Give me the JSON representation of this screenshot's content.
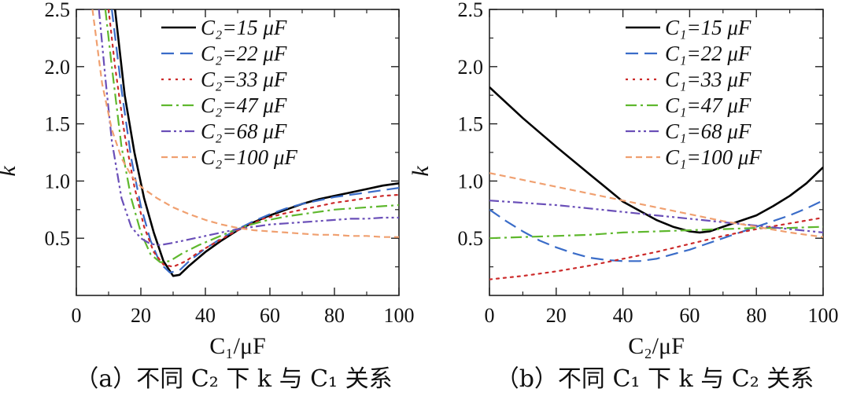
{
  "chart_data": [
    {
      "type": "line",
      "panel": "a",
      "caption": "（a）不同 C₂ 下 k 与 C₁ 关系",
      "xlabel": "C₁/μF",
      "ylabel": "k",
      "xlim": [
        0,
        100
      ],
      "ylim": [
        0,
        2.5
      ],
      "xticks": [
        "0",
        "20",
        "40",
        "60",
        "80",
        "100"
      ],
      "yticks": [
        "0.5",
        "1.0",
        "1.5",
        "2.0",
        "2.5"
      ],
      "legend_position": "top-right",
      "series": [
        {
          "name": "C₂=15 μF",
          "color": "#000000",
          "dash": "solid",
          "x": [
            12,
            15,
            18,
            21,
            24,
            27,
            30,
            32,
            35,
            40,
            45,
            50,
            55,
            60,
            65,
            70,
            75,
            80,
            85,
            90,
            95,
            100
          ],
          "y": [
            2.5,
            1.75,
            1.25,
            0.85,
            0.55,
            0.3,
            0.17,
            0.18,
            0.26,
            0.38,
            0.48,
            0.57,
            0.64,
            0.7,
            0.75,
            0.8,
            0.84,
            0.87,
            0.9,
            0.93,
            0.96,
            0.98
          ]
        },
        {
          "name": "C₂=22 μF",
          "color": "#3a6cc8",
          "dash": "long-dash",
          "x": [
            11,
            14,
            17,
            20,
            23,
            26,
            29,
            32,
            35,
            40,
            45,
            50,
            55,
            60,
            65,
            70,
            75,
            80,
            85,
            90,
            95,
            100
          ],
          "y": [
            2.5,
            1.8,
            1.2,
            0.78,
            0.48,
            0.28,
            0.2,
            0.22,
            0.3,
            0.41,
            0.5,
            0.58,
            0.65,
            0.71,
            0.76,
            0.8,
            0.83,
            0.86,
            0.88,
            0.9,
            0.92,
            0.94
          ]
        },
        {
          "name": "C₂=33 μF",
          "color": "#cc2a2a",
          "dash": "dotted",
          "x": [
            10,
            12,
            15,
            18,
            21,
            24,
            27,
            30,
            34,
            38,
            43,
            48,
            53,
            58,
            65,
            70,
            75,
            80,
            85,
            90,
            95,
            100
          ],
          "y": [
            2.5,
            2.0,
            1.4,
            0.95,
            0.6,
            0.38,
            0.27,
            0.25,
            0.3,
            0.38,
            0.46,
            0.54,
            0.61,
            0.67,
            0.72,
            0.75,
            0.78,
            0.81,
            0.83,
            0.85,
            0.87,
            0.88
          ]
        },
        {
          "name": "C₂=47 μF",
          "color": "#5fb82e",
          "dash": "dash-dot",
          "x": [
            9,
            11,
            14,
            17,
            20,
            23,
            26,
            29,
            33,
            38,
            43,
            48,
            53,
            58,
            65,
            70,
            75,
            80,
            85,
            90,
            95,
            100
          ],
          "y": [
            2.5,
            2.0,
            1.3,
            0.85,
            0.55,
            0.36,
            0.29,
            0.3,
            0.37,
            0.44,
            0.5,
            0.56,
            0.61,
            0.65,
            0.69,
            0.71,
            0.73,
            0.75,
            0.76,
            0.77,
            0.78,
            0.79
          ]
        },
        {
          "name": "C₂=68 μF",
          "color": "#6a4fb8",
          "dash": "dash-dot-dot",
          "x": [
            7,
            9,
            11,
            14,
            17,
            20,
            23,
            26,
            30,
            35,
            40,
            45,
            50,
            55,
            60,
            65,
            70,
            75,
            80,
            85,
            90,
            95,
            100
          ],
          "y": [
            2.5,
            1.9,
            1.35,
            0.85,
            0.6,
            0.5,
            0.45,
            0.44,
            0.46,
            0.49,
            0.52,
            0.55,
            0.58,
            0.6,
            0.62,
            0.63,
            0.64,
            0.65,
            0.66,
            0.67,
            0.67,
            0.68,
            0.68
          ]
        },
        {
          "name": "C₂=100 μF",
          "color": "#f0a070",
          "dash": "short-dash",
          "x": [
            5,
            8,
            11,
            14,
            17,
            20,
            25,
            30,
            35,
            40,
            45,
            50,
            55,
            60,
            65,
            70,
            75,
            80,
            85,
            90,
            95,
            100
          ],
          "y": [
            2.5,
            1.85,
            1.45,
            1.2,
            1.05,
            0.95,
            0.85,
            0.77,
            0.71,
            0.66,
            0.62,
            0.59,
            0.57,
            0.56,
            0.55,
            0.54,
            0.53,
            0.53,
            0.52,
            0.52,
            0.51,
            0.51
          ]
        }
      ]
    },
    {
      "type": "line",
      "panel": "b",
      "caption": "（b）不同 C₁ 下 k 与 C₂ 关系",
      "xlabel": "C₂/μF",
      "ylabel": "k",
      "xlim": [
        0,
        100
      ],
      "ylim": [
        0,
        2.5
      ],
      "xticks": [
        "0",
        "20",
        "40",
        "60",
        "80",
        "100"
      ],
      "yticks": [
        "0.5",
        "1.0",
        "1.5",
        "2.0",
        "2.5"
      ],
      "legend_position": "top-right",
      "series": [
        {
          "name": "C₁=15 μF",
          "color": "#000000",
          "dash": "solid",
          "x": [
            0,
            10,
            20,
            30,
            40,
            50,
            55,
            60,
            63,
            66,
            70,
            75,
            80,
            85,
            90,
            95,
            100
          ],
          "y": [
            1.82,
            1.55,
            1.3,
            1.06,
            0.82,
            0.66,
            0.6,
            0.56,
            0.55,
            0.56,
            0.6,
            0.65,
            0.7,
            0.78,
            0.87,
            0.98,
            1.12
          ]
        },
        {
          "name": "C₁=22 μF",
          "color": "#3a6cc8",
          "dash": "long-dash",
          "x": [
            0,
            5,
            10,
            15,
            20,
            25,
            30,
            35,
            40,
            45,
            50,
            55,
            60,
            65,
            70,
            75,
            80,
            85,
            90,
            95,
            100
          ],
          "y": [
            0.75,
            0.65,
            0.56,
            0.48,
            0.42,
            0.37,
            0.33,
            0.31,
            0.3,
            0.3,
            0.32,
            0.36,
            0.4,
            0.45,
            0.5,
            0.55,
            0.6,
            0.65,
            0.7,
            0.76,
            0.83
          ]
        },
        {
          "name": "C₁=33 μF",
          "color": "#cc2a2a",
          "dash": "dotted",
          "x": [
            0,
            10,
            20,
            30,
            40,
            50,
            60,
            70,
            80,
            90,
            100
          ],
          "y": [
            0.14,
            0.17,
            0.21,
            0.26,
            0.32,
            0.38,
            0.45,
            0.52,
            0.58,
            0.63,
            0.68
          ]
        },
        {
          "name": "C₁=47 μF",
          "color": "#5fb82e",
          "dash": "dash-dot",
          "x": [
            0,
            10,
            20,
            30,
            40,
            50,
            60,
            70,
            80,
            90,
            100
          ],
          "y": [
            0.5,
            0.51,
            0.52,
            0.53,
            0.55,
            0.56,
            0.57,
            0.58,
            0.59,
            0.59,
            0.6
          ]
        },
        {
          "name": "C₁=68 μF",
          "color": "#6a4fb8",
          "dash": "dash-dot-dot",
          "x": [
            0,
            10,
            20,
            30,
            40,
            50,
            60,
            70,
            80,
            90,
            100
          ],
          "y": [
            0.83,
            0.81,
            0.79,
            0.76,
            0.73,
            0.7,
            0.67,
            0.64,
            0.61,
            0.58,
            0.55
          ]
        },
        {
          "name": "C₁=100 μF",
          "color": "#f0a070",
          "dash": "short-dash",
          "x": [
            0,
            10,
            20,
            30,
            40,
            50,
            60,
            70,
            80,
            90,
            100
          ],
          "y": [
            1.07,
            1.01,
            0.95,
            0.89,
            0.83,
            0.77,
            0.71,
            0.65,
            0.6,
            0.55,
            0.51
          ]
        }
      ]
    }
  ]
}
